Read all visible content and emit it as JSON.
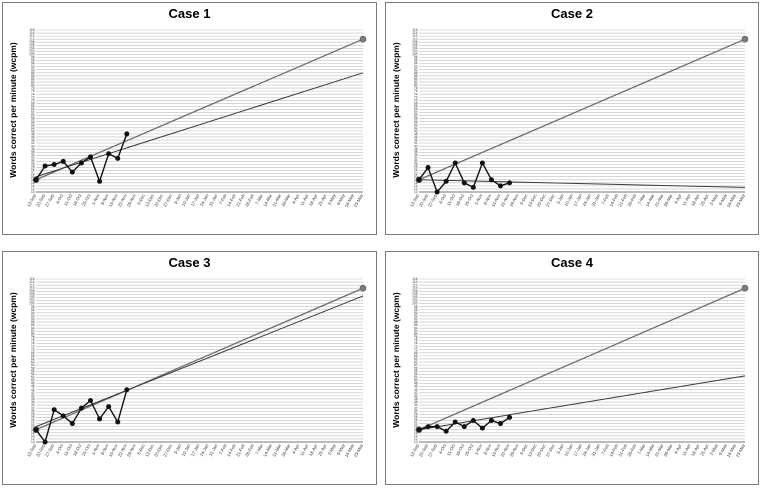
{
  "chart_data": [
    {
      "type": "line",
      "title": "Case 1",
      "ylabel": "Words correct per minute (wcpm)",
      "y_ticks_start": 10,
      "y_ticks_end": 116,
      "x_ticks": [
        "13-Sep",
        "20-Sep",
        "27-Sep",
        "4-Oct",
        "11-Oct",
        "18-Oct",
        "25-Oct",
        "1-Nov",
        "8-Nov",
        "15-Nov",
        "22-Nov",
        "29-Nov",
        "6-Dec",
        "13-Dec",
        "20-Dec",
        "27-Dec",
        "3-Jan",
        "10-Jan",
        "17-Jan",
        "24-Jan",
        "31-Jan",
        "7-Feb",
        "14-Feb",
        "21-Feb",
        "28-Feb",
        "7-Mar",
        "14-Mar",
        "21-Mar",
        "28-Mar",
        "4-Apr",
        "11-Apr",
        "18-Apr",
        "25-Apr",
        "2-May",
        "9-May",
        "16-May",
        "23-May"
      ],
      "series": [
        {
          "values": [
            {
              "x": "13-Sep",
              "y": 18
            },
            {
              "x": "20-Sep",
              "y": 27
            },
            {
              "x": "27-Sep",
              "y": 28
            },
            {
              "x": "4-Oct",
              "y": 30
            },
            {
              "x": "11-Oct",
              "y": 23
            },
            {
              "x": "18-Oct",
              "y": 29
            },
            {
              "x": "25-Oct",
              "y": 33
            },
            {
              "x": "1-Nov",
              "y": 17
            },
            {
              "x": "8-Nov",
              "y": 35
            },
            {
              "x": "15-Nov",
              "y": 32
            },
            {
              "x": "22-Nov",
              "y": 48
            }
          ]
        },
        {
          "values": [
            {
              "x": "13-Sep",
              "y": 18
            },
            {
              "x": "23-May",
              "y": 110
            }
          ]
        },
        {
          "values": [
            {
              "x": "13-Sep",
              "y": 20
            },
            {
              "x": "23-May",
              "y": 88
            }
          ]
        }
      ]
    },
    {
      "type": "line",
      "title": "Case 2",
      "ylabel": "Words correct per minute (wcpm)",
      "y_ticks_start": 10,
      "y_ticks_end": 116,
      "x_ticks": [
        "13-Sep",
        "20-Sep",
        "27-Sep",
        "4-Oct",
        "11-Oct",
        "18-Oct",
        "25-Oct",
        "1-Nov",
        "8-Nov",
        "15-Nov",
        "22-Nov",
        "29-Nov",
        "6-Dec",
        "13-Dec",
        "20-Dec",
        "27-Dec",
        "3-Jan",
        "10-Jan",
        "17-Jan",
        "24-Jan",
        "31-Jan",
        "7-Feb",
        "14-Feb",
        "21-Feb",
        "28-Feb",
        "7-Mar",
        "14-Mar",
        "21-Mar",
        "28-Mar",
        "4-Apr",
        "11-Apr",
        "18-Apr",
        "25-Apr",
        "2-May",
        "9-May",
        "16-May",
        "23-May"
      ],
      "series": [
        {
          "values": [
            {
              "x": "13-Sep",
              "y": 18
            },
            {
              "x": "20-Sep",
              "y": 26
            },
            {
              "x": "27-Sep",
              "y": 10
            },
            {
              "x": "4-Oct",
              "y": 17
            },
            {
              "x": "11-Oct",
              "y": 29
            },
            {
              "x": "18-Oct",
              "y": 16
            },
            {
              "x": "25-Oct",
              "y": 13
            },
            {
              "x": "1-Nov",
              "y": 29
            },
            {
              "x": "8-Nov",
              "y": 18
            },
            {
              "x": "15-Nov",
              "y": 14
            },
            {
              "x": "22-Nov",
              "y": 16
            }
          ]
        },
        {
          "values": [
            {
              "x": "13-Sep",
              "y": 18
            },
            {
              "x": "23-May",
              "y": 110
            }
          ]
        },
        {
          "values": [
            {
              "x": "13-Sep",
              "y": 18
            },
            {
              "x": "23-May",
              "y": 13
            }
          ]
        }
      ]
    },
    {
      "type": "line",
      "title": "Case 3",
      "ylabel": "Words correct per minute (wcpm)",
      "y_ticks_start": 10,
      "y_ticks_end": 116,
      "x_ticks": [
        "13-Sep",
        "20-Sep",
        "27-Sep",
        "4-Oct",
        "11-Oct",
        "18-Oct",
        "25-Oct",
        "1-Nov",
        "8-Nov",
        "15-Nov",
        "22-Nov",
        "29-Nov",
        "6-Dec",
        "13-Dec",
        "20-Dec",
        "27-Dec",
        "3-Jan",
        "10-Jan",
        "17-Jan",
        "24-Jan",
        "31-Jan",
        "7-Feb",
        "14-Feb",
        "21-Feb",
        "28-Feb",
        "7-Mar",
        "14-Mar",
        "21-Mar",
        "28-Mar",
        "4-Apr",
        "11-Apr",
        "18-Apr",
        "25-Apr",
        "2-May",
        "9-May",
        "16-May",
        "23-May"
      ],
      "series": [
        {
          "values": [
            {
              "x": "13-Sep",
              "y": 18
            },
            {
              "x": "20-Sep",
              "y": 10
            },
            {
              "x": "27-Sep",
              "y": 31
            },
            {
              "x": "4-Oct",
              "y": 27
            },
            {
              "x": "11-Oct",
              "y": 22
            },
            {
              "x": "18-Oct",
              "y": 32
            },
            {
              "x": "25-Oct",
              "y": 37
            },
            {
              "x": "1-Nov",
              "y": 25
            },
            {
              "x": "8-Nov",
              "y": 33
            },
            {
              "x": "15-Nov",
              "y": 23
            },
            {
              "x": "22-Nov",
              "y": 44
            }
          ]
        },
        {
          "values": [
            {
              "x": "13-Sep",
              "y": 18
            },
            {
              "x": "23-May",
              "y": 110
            }
          ]
        },
        {
          "values": [
            {
              "x": "13-Sep",
              "y": 20
            },
            {
              "x": "23-May",
              "y": 105
            }
          ]
        }
      ]
    },
    {
      "type": "line",
      "title": "Case 4",
      "ylabel": "Words correct per minute (wcpm)",
      "y_ticks_start": 10,
      "y_ticks_end": 116,
      "x_ticks": [
        "13-Sep",
        "20-Sep",
        "27-Sep",
        "4-Oct",
        "11-Oct",
        "18-Oct",
        "25-Oct",
        "1-Nov",
        "8-Nov",
        "15-Nov",
        "22-Nov",
        "29-Nov",
        "6-Dec",
        "13-Dec",
        "20-Dec",
        "27-Dec",
        "3-Jan",
        "10-Jan",
        "17-Jan",
        "24-Jan",
        "31-Jan",
        "7-Feb",
        "14-Feb",
        "21-Feb",
        "28-Feb",
        "7-Mar",
        "14-Mar",
        "21-Mar",
        "28-Mar",
        "4-Apr",
        "11-Apr",
        "18-Apr",
        "25-Apr",
        "2-May",
        "9-May",
        "16-May",
        "23-May"
      ],
      "series": [
        {
          "values": [
            {
              "x": "13-Sep",
              "y": 18
            },
            {
              "x": "20-Sep",
              "y": 20
            },
            {
              "x": "27-Sep",
              "y": 20
            },
            {
              "x": "4-Oct",
              "y": 17
            },
            {
              "x": "11-Oct",
              "y": 23
            },
            {
              "x": "18-Oct",
              "y": 20
            },
            {
              "x": "25-Oct",
              "y": 24
            },
            {
              "x": "1-Nov",
              "y": 19
            },
            {
              "x": "8-Nov",
              "y": 24
            },
            {
              "x": "15-Nov",
              "y": 22
            },
            {
              "x": "22-Nov",
              "y": 26
            }
          ]
        },
        {
          "values": [
            {
              "x": "13-Sep",
              "y": 18
            },
            {
              "x": "23-May",
              "y": 110
            }
          ]
        },
        {
          "values": [
            {
              "x": "13-Sep",
              "y": 18
            },
            {
              "x": "23-May",
              "y": 53
            }
          ]
        }
      ]
    }
  ]
}
